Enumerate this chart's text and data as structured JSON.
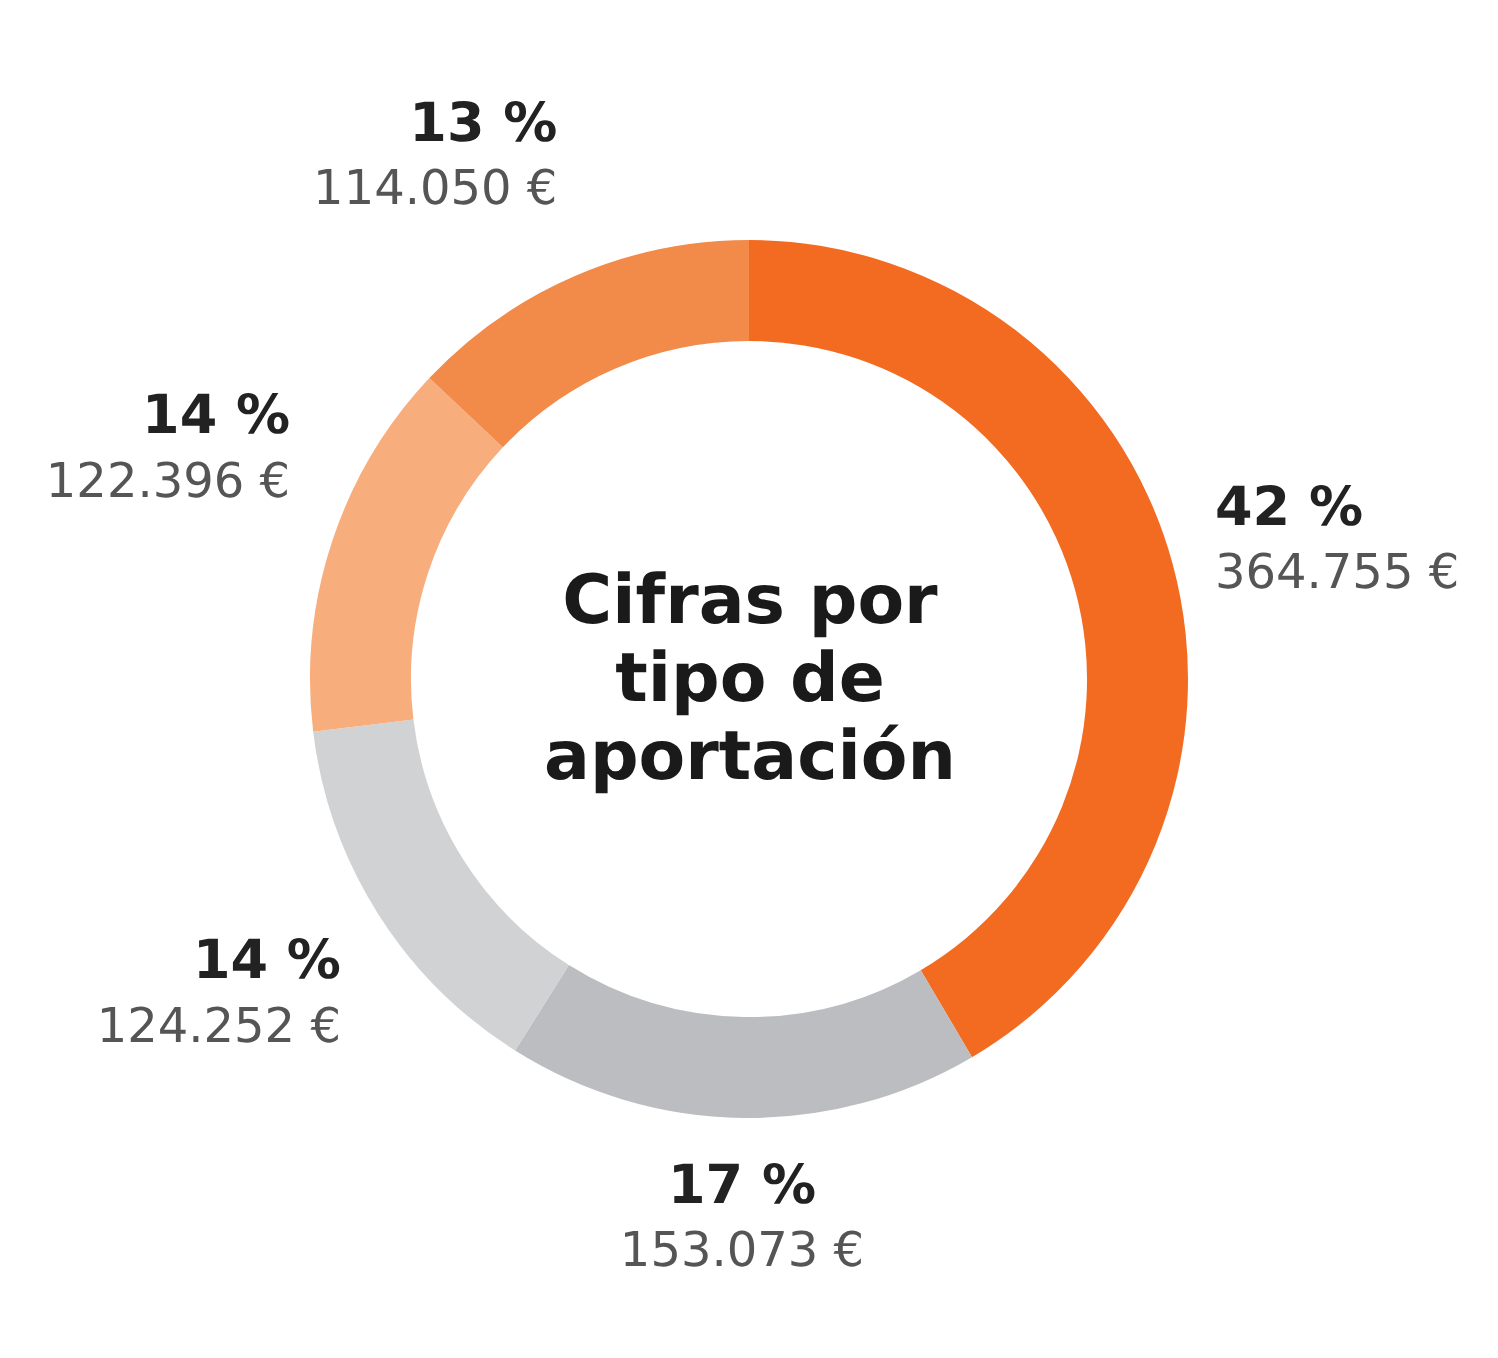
{
  "chart_data": {
    "type": "donut",
    "title": "Cifras por tipo de aportación",
    "categories": [
      null,
      null,
      null,
      null,
      null
    ],
    "values": [
      364755,
      153073,
      124252,
      122396,
      114050
    ],
    "colors": [
      "#f26b21",
      "#bcbdc1",
      "#d1d2d4",
      "#f8ae7c",
      "#f28a4a"
    ],
    "value_labels": [
      "42 %\n364.755 €",
      "17 %\n153.073 €",
      "14 %\n124.252 €",
      "14 %\n122.396 €",
      "13 %\n114.050 €"
    ],
    "legend": false
  }
}
